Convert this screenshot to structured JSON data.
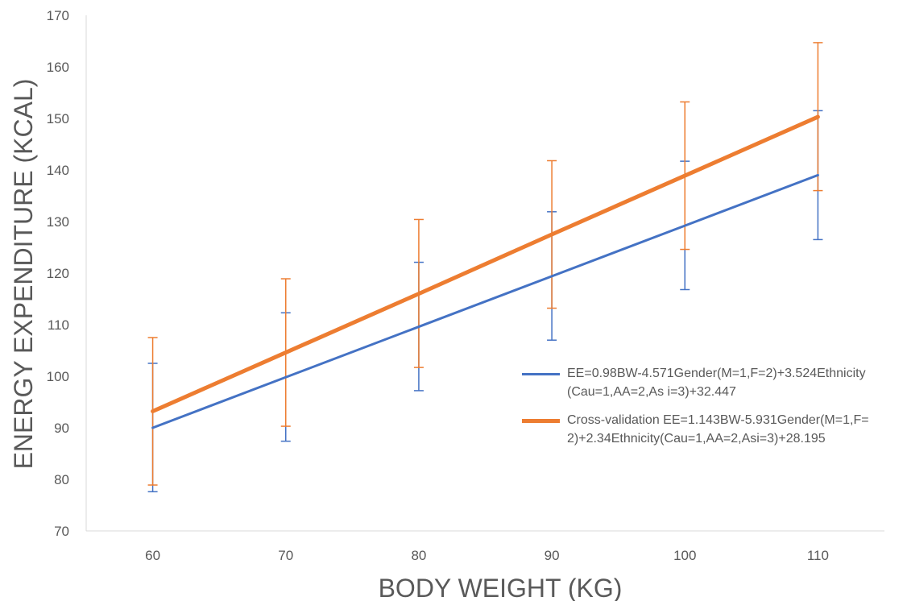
{
  "chart_data": {
    "type": "line",
    "xlabel": "BODY WEIGHT (KG)",
    "ylabel": "ENERGY EXPENDITURE (KCAL)",
    "x": [
      60,
      70,
      80,
      90,
      100,
      110
    ],
    "x_tick_labels": [
      "60",
      "70",
      "80",
      "90",
      "100",
      "110"
    ],
    "ylim": [
      70,
      170
    ],
    "y_ticks": [
      70,
      80,
      90,
      100,
      110,
      120,
      130,
      140,
      150,
      160,
      170
    ],
    "grid": false,
    "legend_position": "right",
    "series": [
      {
        "name": "EE=0.98BW-4.571Gender(M=1,F=2)+3.524Ethnicity(Cau=1,AA=2,As i=3)+32.447",
        "color": "#4472C4",
        "values": [
          90.0,
          99.8,
          109.6,
          119.4,
          129.2,
          139.0
        ],
        "error_upper": [
          102.5,
          112.3,
          122.1,
          131.9,
          141.7,
          151.5
        ],
        "error_lower": [
          77.6,
          87.4,
          97.2,
          107.0,
          116.8,
          126.5
        ]
      },
      {
        "name": "Cross-validation EE=1.143BW-5.931Gender(M=1,F=2)+2.34Ethnicity(Cau=1,AA=2,Asi=3)+28.195",
        "color": "#ED7D31",
        "values": [
          93.2,
          104.6,
          116.0,
          127.5,
          138.9,
          150.3
        ],
        "error_upper": [
          107.5,
          118.9,
          130.4,
          141.8,
          153.2,
          164.7
        ],
        "error_lower": [
          78.9,
          90.3,
          101.7,
          113.2,
          124.6,
          136.0
        ]
      }
    ]
  }
}
